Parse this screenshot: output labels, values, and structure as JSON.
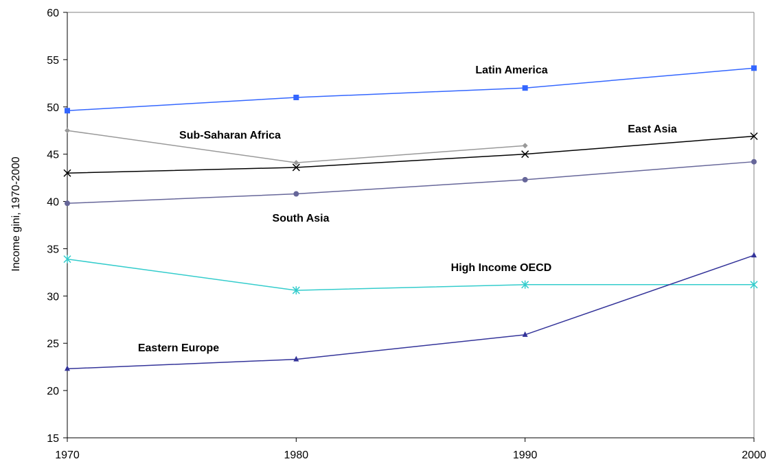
{
  "chart_data": {
    "type": "line",
    "title": "",
    "xlabel": "",
    "ylabel": "Income gini, 1970-2000",
    "x": [
      1970,
      1980,
      1990,
      2000
    ],
    "x_tick_labels": [
      "1970",
      "1980",
      "1990",
      "2000"
    ],
    "ylim": [
      15,
      60
    ],
    "yticks": [
      15,
      20,
      25,
      30,
      35,
      40,
      45,
      50,
      55,
      60
    ],
    "y_tick_labels": [
      "15",
      "20",
      "25",
      "30",
      "35",
      "40",
      "45",
      "50",
      "55",
      "60"
    ],
    "grid": false,
    "legend": "none (series labelled inline)",
    "series": [
      {
        "name": "Latin America",
        "color": "#3366FF",
        "marker": "square",
        "values": [
          49.6,
          51.0,
          52.0,
          54.1
        ]
      },
      {
        "name": "Sub-Saharan Africa",
        "color": "#999999",
        "marker": "diamond",
        "values": [
          47.5,
          44.1,
          45.9,
          null
        ]
      },
      {
        "name": "East Asia",
        "color": "#000000",
        "marker": "x",
        "values": [
          43.0,
          43.6,
          45.0,
          46.9
        ]
      },
      {
        "name": "South Asia",
        "color": "#666699",
        "marker": "circle",
        "values": [
          39.8,
          40.8,
          42.3,
          44.2
        ]
      },
      {
        "name": "High Income OECD",
        "color": "#33CCCC",
        "marker": "asterisk",
        "values": [
          33.9,
          30.6,
          31.2,
          31.2
        ]
      },
      {
        "name": "Eastern Europe",
        "color": "#333399",
        "marker": "triangle",
        "values": [
          22.3,
          23.3,
          25.9,
          34.3
        ]
      }
    ]
  }
}
